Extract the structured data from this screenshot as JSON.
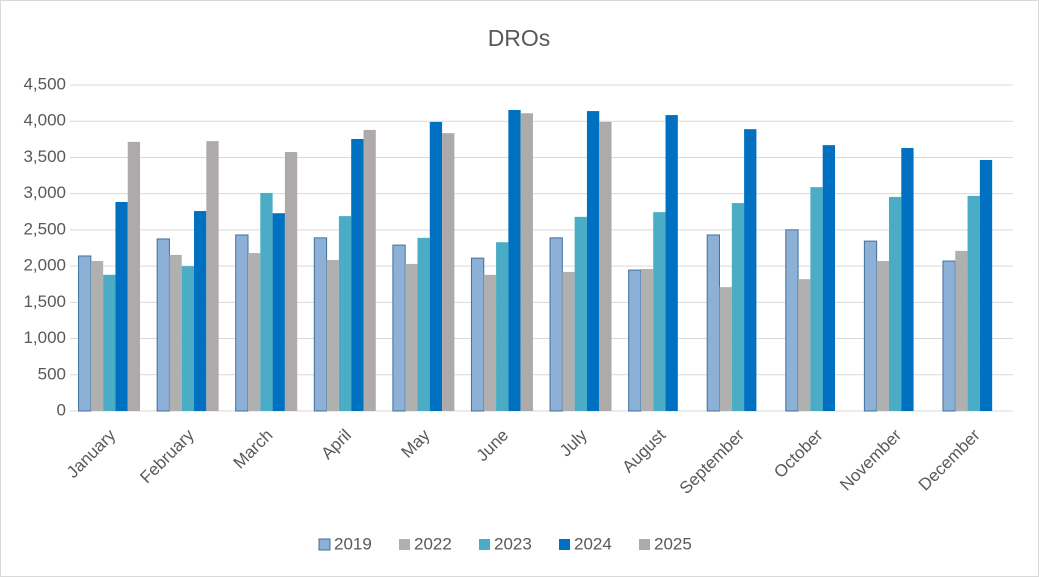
{
  "chart_data": {
    "type": "bar",
    "title": "DROs",
    "categories": [
      "January",
      "February",
      "March",
      "April",
      "May",
      "June",
      "July",
      "August",
      "September",
      "October",
      "November",
      "December"
    ],
    "series": [
      {
        "name": "2019",
        "color": "#8db0d6",
        "values": [
          2140,
          2375,
          2430,
          2390,
          2290,
          2110,
          2390,
          1945,
          2430,
          2500,
          2345,
          2070
        ]
      },
      {
        "name": "2022",
        "color": "#b0b0b0",
        "values": [
          2070,
          2155,
          2180,
          2085,
          2030,
          1880,
          1920,
          1960,
          1710,
          1820,
          2070,
          2210
        ]
      },
      {
        "name": "2023",
        "color": "#4bacc6",
        "values": [
          1880,
          2000,
          3010,
          2690,
          2390,
          2330,
          2680,
          2745,
          2870,
          3090,
          2955,
          2970
        ]
      },
      {
        "name": "2024",
        "color": "#0070c0",
        "values": [
          2885,
          2760,
          2730,
          3755,
          3990,
          4155,
          4140,
          4085,
          3890,
          3670,
          3630,
          3465
        ]
      },
      {
        "name": "2025",
        "color": "#aeaaaa",
        "values": [
          3715,
          3725,
          3575,
          3880,
          3835,
          4110,
          3990,
          null,
          null,
          null,
          null,
          null
        ]
      }
    ],
    "ylim": [
      0,
      4500
    ],
    "yticks": [
      0,
      500,
      {
        "value": 1000,
        "label": "1,000"
      },
      {
        "value": 1500,
        "label": "1,500"
      },
      {
        "value": 2000,
        "label": "2,000"
      },
      {
        "value": 2500,
        "label": "2,500"
      },
      {
        "value": 3000,
        "label": "3,000"
      },
      {
        "value": 3500,
        "label": "3,500"
      },
      {
        "value": 4000,
        "label": "4,000"
      },
      {
        "value": 4500,
        "label": "4,500"
      }
    ],
    "grid": true,
    "legend": "bottom"
  }
}
